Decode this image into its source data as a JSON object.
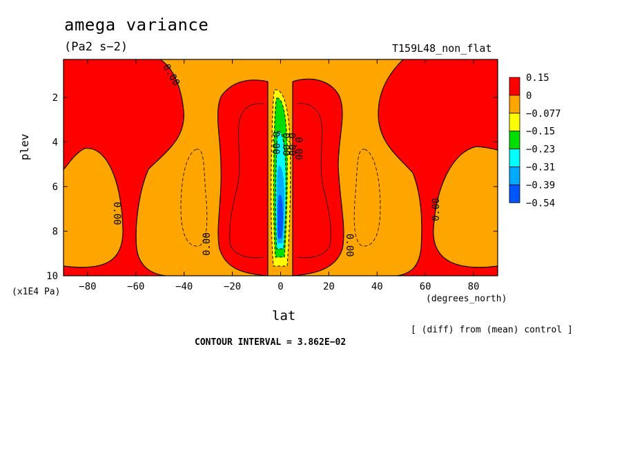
{
  "chart_data": {
    "type": "heatmap",
    "title": "amega variance",
    "units": "(Pa2 s−2)",
    "experiment": "T159L48_non_flat",
    "xlabel": "lat",
    "xunits": "(degrees_north)",
    "ylabel": "plev",
    "yunits": "(x1E4 Pa)",
    "note": "[ (diff) from (mean) control ]",
    "contour_interval": "CONTOUR INTERVAL = 3.862E−02",
    "xlim": [
      -90,
      90
    ],
    "ylim": [
      10,
      0.3
    ],
    "x_ticks": [
      -80,
      -60,
      -40,
      -20,
      0,
      20,
      40,
      60,
      80
    ],
    "y_ticks": [
      2,
      4,
      6,
      8,
      10
    ],
    "colorbar": {
      "labels": [
        "0.15",
        "0",
        "−0.077",
        "−0.15",
        "−0.23",
        "−0.31",
        "−0.39",
        "−0.54"
      ],
      "colors": [
        "#ff0000",
        "#ffa500",
        "#ffff00",
        "#00dd00",
        "#00ffff",
        "#00aaff",
        "#0055ff"
      ]
    },
    "contour_labels": [
      "0.00",
      "0.00",
      "0.00",
      "0.00",
      "0.00",
      "0.00",
      "0.00",
      "0.00",
      "0.00"
    ]
  }
}
